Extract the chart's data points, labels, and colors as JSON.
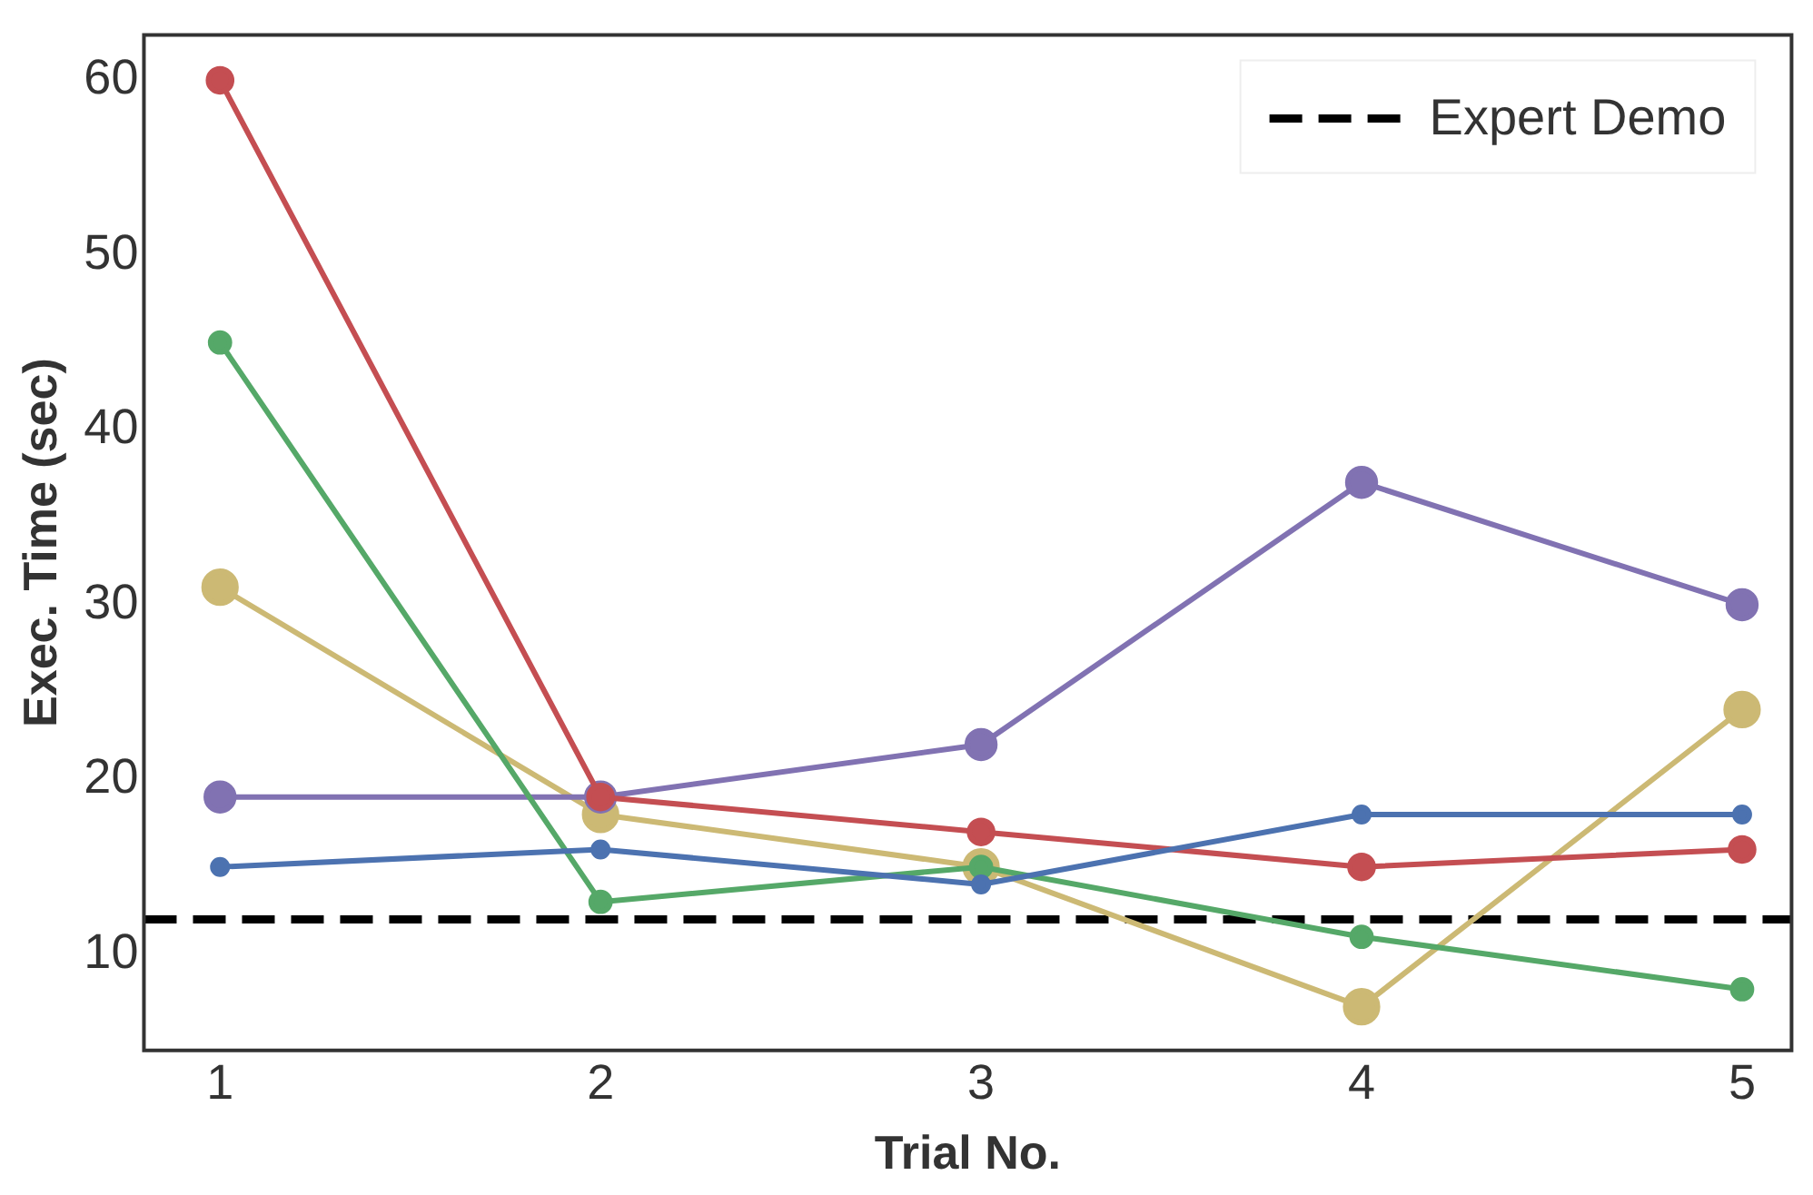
{
  "chart_data": {
    "type": "line",
    "xlabel": "Trial No.",
    "ylabel": "Exec. Time (sec)",
    "x": [
      1,
      2,
      3,
      4,
      5
    ],
    "series": [
      {
        "color": "#4c72b0",
        "values": [
          15,
          16,
          14,
          18,
          18
        ]
      },
      {
        "color": "#55a868",
        "values": [
          45,
          13,
          15,
          11,
          8
        ]
      },
      {
        "color": "#c44e52",
        "values": [
          60,
          19,
          17,
          15,
          16
        ]
      },
      {
        "color": "#8172b2",
        "values": [
          19,
          19,
          22,
          37,
          30
        ]
      },
      {
        "color": "#ccb974",
        "values": [
          31,
          18,
          15,
          7,
          24
        ]
      }
    ],
    "ref_lines": [
      {
        "axis": "y",
        "value": 12,
        "label": "Expert Demo",
        "color": "#000000",
        "line_style": "dashed"
      }
    ],
    "xlim": [
      0.8,
      5.13
    ],
    "ylim": [
      4.5,
      62.6
    ],
    "xticks": [
      1,
      2,
      3,
      4,
      5
    ],
    "yticks": [
      10,
      20,
      30,
      40,
      50,
      60
    ],
    "grid": false,
    "legend": "top right",
    "marker": "circle",
    "line_style": "solid"
  }
}
